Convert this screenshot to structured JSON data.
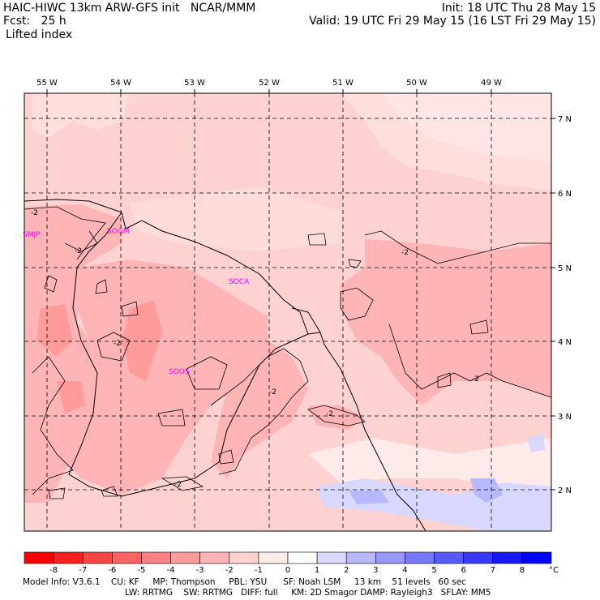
{
  "header": {
    "line1_left": "HAIC-HIWC 13km ARW-GFS init   NCAR/MMM",
    "line1_right": "Init: 18 UTC Thu 28 May 15",
    "line2_left": "Fcst:   25 h",
    "line2_right": "Valid: 19 UTC Fri 29 May 15 (16 LST Fri 29 May 15)",
    "line3_left": "Lifted index"
  },
  "map": {
    "lon_labels": [
      "55 W",
      "54 W",
      "53 W",
      "52 W",
      "51 W",
      "50 W",
      "49 W"
    ],
    "lat_labels": [
      "7 N",
      "6 N",
      "5 N",
      "4 N",
      "3 N",
      "2 N"
    ],
    "stations": [
      "SMJP",
      "SOGM",
      "SOCA",
      "SOOS"
    ],
    "contour_labels": [
      "-2",
      "-2",
      "-2",
      "-2",
      "-2",
      "-2",
      "-2",
      "-2"
    ]
  },
  "colorbar": {
    "ticks": [
      "-8",
      "-7",
      "-6",
      "-5",
      "-4",
      "-3",
      "-2",
      "-1",
      "0",
      "1",
      "2",
      "3",
      "4",
      "5",
      "6",
      "7",
      "8"
    ],
    "unit": "°C",
    "colors": [
      "#ff0000",
      "#ff2020",
      "#ff4545",
      "#ff6363",
      "#ff8080",
      "#ff9b9b",
      "#ffb5b5",
      "#ffd2d2",
      "#ffeaea",
      "#ffffff",
      "#d8d8ff",
      "#b8b8ff",
      "#9898ff",
      "#7878ff",
      "#5858ff",
      "#3838ff",
      "#1818ff",
      "#0000ff"
    ]
  },
  "footer": {
    "line1": "Model Info: V3.6.1    CU: KF     MP: Thompson     PBL: YSU      SF: Noah LSM     13 km    51 levels   60 sec",
    "line2": "LW: RRTMG    SW: RRTMG   DIFF: full     KM: 2D Smagor DAMP: Rayleigh3   SFLAY: MM5"
  }
}
